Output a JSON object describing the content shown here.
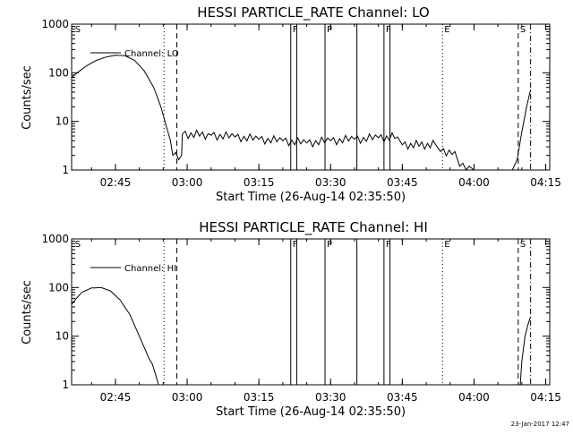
{
  "chart_data": [
    {
      "type": "line",
      "title": "HESSI PARTICLE_RATE Channel: LO",
      "xlabel": "Start Time (26-Aug-14 02:35:50)",
      "ylabel": "Counts/sec",
      "yscale": "log",
      "ylim": [
        1,
        1000
      ],
      "xlim": [
        "02:35:50",
        "04:15:50"
      ],
      "xticks": [
        "02:45",
        "03:00",
        "03:15",
        "03:30",
        "03:45",
        "04:00",
        "04:15"
      ],
      "yticks": [
        "1",
        "10",
        "100",
        "1000"
      ],
      "grid": false,
      "legend": {
        "position": "top-left",
        "entries": [
          "Channel: LO"
        ]
      },
      "flags": [
        {
          "label": "S",
          "time": "02:36:10",
          "style": "none"
        },
        {
          "label": "",
          "time": "02:55:10",
          "style": "dotted"
        },
        {
          "label": "",
          "time": "02:57:50",
          "style": "dashed"
        },
        {
          "label": "F",
          "time": "03:21:40",
          "style": "solid"
        },
        {
          "label": "",
          "time": "03:22:55",
          "style": "solid"
        },
        {
          "label": "P",
          "time": "03:28:50",
          "style": "solid"
        },
        {
          "label": "",
          "time": "03:35:30",
          "style": "solid"
        },
        {
          "label": "F",
          "time": "03:41:10",
          "style": "solid"
        },
        {
          "label": "",
          "time": "03:42:25",
          "style": "solid"
        },
        {
          "label": "E",
          "time": "03:53:25",
          "style": "dotted"
        },
        {
          "label": "S",
          "time": "04:09:15",
          "style": "dashed"
        },
        {
          "label": "",
          "time": "04:11:50",
          "style": "dashdot"
        }
      ],
      "series": [
        {
          "name": "Channel: LO",
          "points": [
            [
              "02:35:50",
              80
            ],
            [
              "02:37:00",
              100
            ],
            [
              "02:39:00",
              140
            ],
            [
              "02:41:00",
              180
            ],
            [
              "02:43:00",
              210
            ],
            [
              "02:45:00",
              230
            ],
            [
              "02:47:00",
              225
            ],
            [
              "02:49:00",
              180
            ],
            [
              "02:51:00",
              110
            ],
            [
              "02:53:00",
              50
            ],
            [
              "02:54:30",
              20
            ],
            [
              "02:55:30",
              9
            ],
            [
              "02:56:30",
              4
            ],
            [
              "02:57:00",
              2
            ],
            [
              "02:58:50",
              2
            ],
            [
              "02:59:00",
              5.5
            ],
            [
              "03:05:00",
              5.2
            ],
            [
              "03:10:00",
              4.8
            ],
            [
              "03:15:00",
              4.3
            ],
            [
              "03:20:00",
              4.0
            ],
            [
              "03:25:00",
              3.6
            ],
            [
              "03:30:00",
              4.0
            ],
            [
              "03:35:00",
              4.3
            ],
            [
              "03:40:00",
              4.6
            ],
            [
              "03:44:00",
              4.8
            ],
            [
              "03:45:00",
              3.3
            ],
            [
              "03:52:00",
              3.3
            ],
            [
              "03:53:00",
              2.4
            ],
            [
              "03:56:00",
              2.4
            ],
            [
              "03:57:00",
              1.2
            ],
            [
              "03:59:00",
              1.2
            ],
            [
              "04:00:00",
              1.0
            ],
            [
              "04:05:00",
              1.0
            ],
            [
              "04:08:00",
              1.0
            ],
            [
              "04:09:00",
              1.6
            ],
            [
              "04:10:00",
              6
            ],
            [
              "04:11:00",
              20
            ],
            [
              "04:11:50",
              45
            ]
          ]
        }
      ]
    },
    {
      "type": "line",
      "title": "HESSI PARTICLE_RATE Channel: HI",
      "xlabel": "Start Time (26-Aug-14 02:35:50)",
      "ylabel": "Counts/sec",
      "yscale": "log",
      "ylim": [
        1,
        1000
      ],
      "xlim": [
        "02:35:50",
        "04:15:50"
      ],
      "xticks": [
        "02:45",
        "03:00",
        "03:15",
        "03:30",
        "03:45",
        "04:00",
        "04:15"
      ],
      "yticks": [
        "1",
        "10",
        "100",
        "1000"
      ],
      "grid": false,
      "legend": {
        "position": "top-left",
        "entries": [
          "Channel: HI"
        ]
      },
      "flags": [
        {
          "label": "S",
          "time": "02:36:10",
          "style": "none"
        },
        {
          "label": "",
          "time": "02:55:10",
          "style": "dotted"
        },
        {
          "label": "",
          "time": "02:57:50",
          "style": "dashed"
        },
        {
          "label": "F",
          "time": "03:21:40",
          "style": "solid"
        },
        {
          "label": "",
          "time": "03:22:55",
          "style": "solid"
        },
        {
          "label": "P",
          "time": "03:28:50",
          "style": "solid"
        },
        {
          "label": "",
          "time": "03:35:30",
          "style": "solid"
        },
        {
          "label": "F",
          "time": "03:41:10",
          "style": "solid"
        },
        {
          "label": "",
          "time": "03:42:25",
          "style": "solid"
        },
        {
          "label": "E",
          "time": "03:53:25",
          "style": "dotted"
        },
        {
          "label": "S",
          "time": "04:09:15",
          "style": "dashed"
        },
        {
          "label": "",
          "time": "04:11:50",
          "style": "dashdot"
        }
      ],
      "series": [
        {
          "name": "Channel: HI",
          "points": [
            [
              "02:35:50",
              45
            ],
            [
              "02:36:30",
              55
            ],
            [
              "02:38:00",
              80
            ],
            [
              "02:40:00",
              98
            ],
            [
              "02:42:00",
              100
            ],
            [
              "02:44:00",
              85
            ],
            [
              "02:46:00",
              55
            ],
            [
              "02:48:00",
              28
            ],
            [
              "02:50:00",
              10
            ],
            [
              "02:52:00",
              3.5
            ],
            [
              "02:53:30",
              1.5
            ],
            [
              "02:54:00",
              1.0
            ],
            [
              "04:09:40",
              1.0
            ],
            [
              "04:10:00",
              3
            ],
            [
              "04:10:40",
              10
            ],
            [
              "04:11:20",
              18
            ],
            [
              "04:11:50",
              25
            ]
          ]
        }
      ]
    }
  ],
  "footer": {
    "timestamp": "23-Jan-2017 12:47"
  }
}
